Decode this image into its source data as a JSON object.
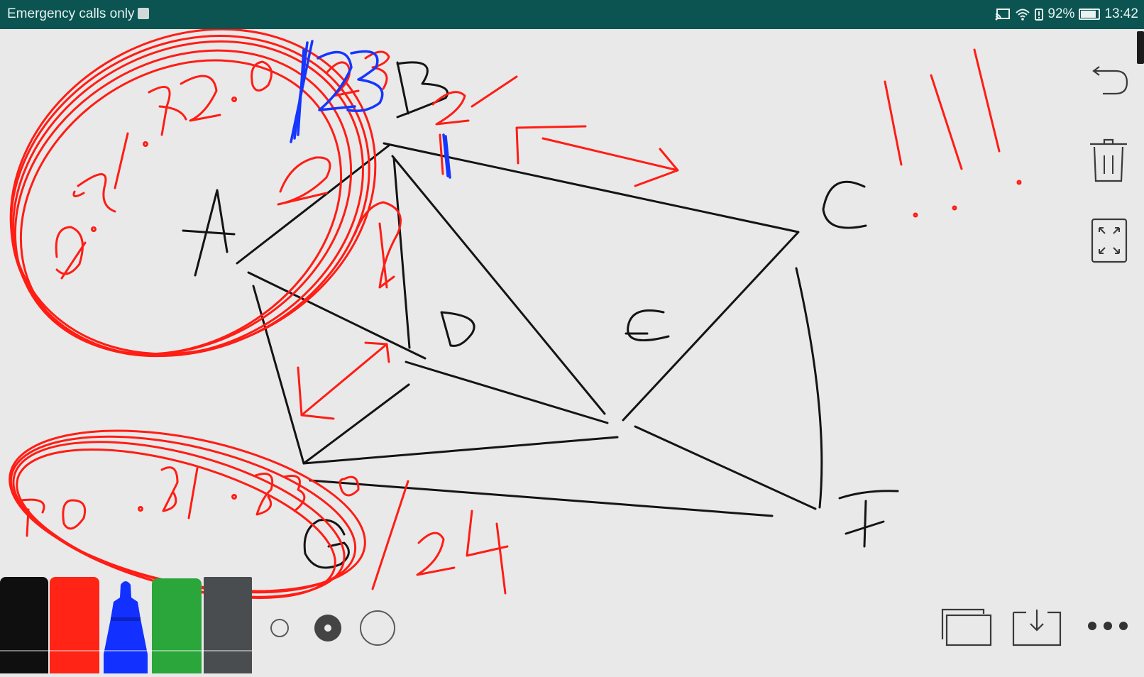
{
  "status_bar": {
    "left_text": "Emergency calls only",
    "battery_percent": "92%",
    "battery_level": 0.92,
    "time": "13:42",
    "icons": [
      "cast-icon",
      "wifi-icon",
      "battery-alert-icon",
      "battery-icon"
    ]
  },
  "whiteboard": {
    "handwriting": {
      "label_a": "A",
      "label_b": "B",
      "label_c": "C",
      "label_d": "D",
      "label_e": "E",
      "label_f": "F",
      "label_g": "G",
      "number_top": "0.01.82.0",
      "number_bottom": "0.81.83.8",
      "blue_number": "123",
      "fraction": "/24",
      "mark_two_top": "2",
      "mark_two_mid": "2",
      "mark_two_left": "2",
      "mark_three": "3",
      "tally": "1111"
    },
    "ink_colors": {
      "black": "#141414",
      "red": "#ff1d14",
      "blue": "#1536ff"
    }
  },
  "toolbar": {
    "right_icons": [
      "undo-icon",
      "trash-icon",
      "fullscreen-icon"
    ],
    "bottom_icons": [
      "pages-icon",
      "download-icon",
      "more-icon"
    ],
    "pen_colors": [
      {
        "name": "black",
        "color": "#0f0f0f"
      },
      {
        "name": "red",
        "color": "#ff2415"
      },
      {
        "name": "blue",
        "color": "#1230ff"
      },
      {
        "name": "green",
        "color": "#2aa63a"
      },
      {
        "name": "gray",
        "color": "#4a4d50"
      }
    ],
    "selected_pen": "blue",
    "pen_sizes": [
      "small",
      "medium",
      "large"
    ],
    "selected_size": "medium"
  }
}
